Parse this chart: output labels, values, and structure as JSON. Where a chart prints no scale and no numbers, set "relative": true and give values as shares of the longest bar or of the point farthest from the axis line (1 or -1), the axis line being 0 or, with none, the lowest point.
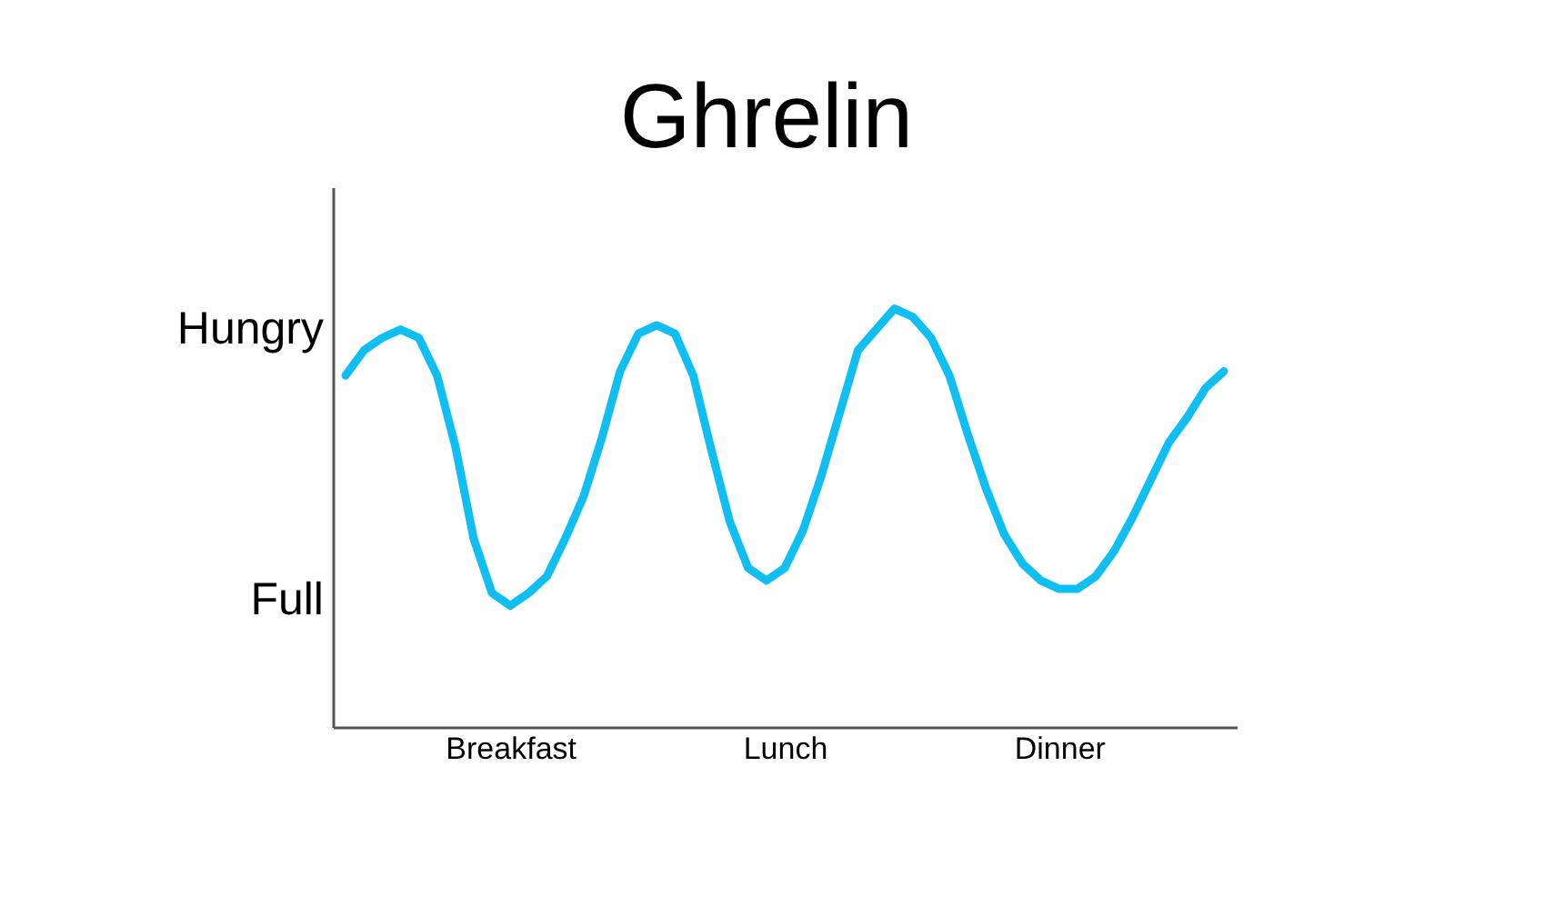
{
  "chart_data": {
    "type": "line",
    "title": "Ghrelin",
    "color": "#0fbef2",
    "relative": true,
    "categories": [
      null,
      null,
      null,
      null,
      null,
      null,
      null,
      null,
      null,
      "Breakfast",
      null,
      null,
      null,
      null,
      null,
      null,
      null,
      null,
      null,
      null,
      null,
      null,
      null,
      null,
      "Lunch",
      null,
      null,
      null,
      null,
      null,
      null,
      null,
      null,
      null,
      null,
      null,
      null,
      null,
      null,
      "Dinner",
      null,
      null,
      null,
      null,
      null,
      null,
      null,
      null,
      null
    ],
    "values": [
      0.84,
      0.9,
      0.93,
      0.95,
      0.93,
      0.84,
      0.67,
      0.45,
      0.32,
      0.29,
      0.32,
      0.36,
      0.45,
      0.55,
      0.69,
      0.85,
      0.94,
      0.96,
      0.94,
      0.84,
      0.66,
      0.49,
      0.38,
      0.35,
      0.38,
      0.47,
      0.6,
      0.75,
      0.9,
      0.95,
      1.0,
      0.98,
      0.93,
      0.84,
      0.7,
      0.57,
      0.46,
      0.39,
      0.35,
      0.33,
      0.33,
      0.36,
      0.42,
      0.5,
      0.59,
      0.68,
      0.74,
      0.81,
      0.85
    ],
    "annotations": [
      "Hungry",
      "Full"
    ],
    "tick_labels": "x",
    "grid": false,
    "line_style": "solid"
  }
}
